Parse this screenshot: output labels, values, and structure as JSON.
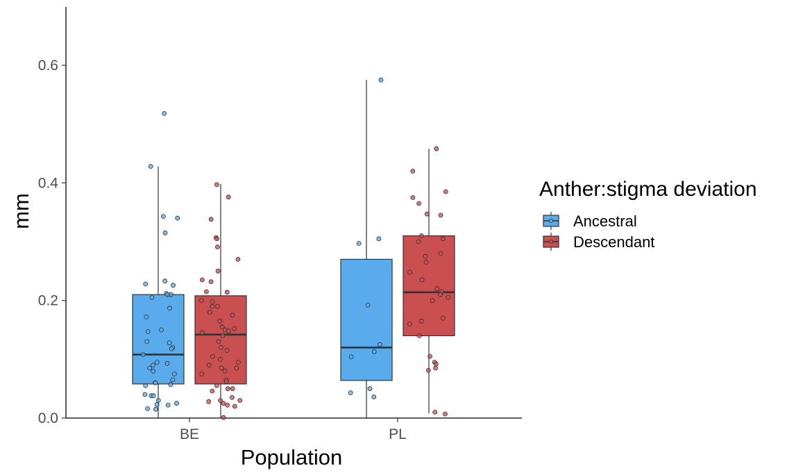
{
  "chart_data": {
    "type": "boxplot",
    "xlabel": "Population",
    "ylabel": "mm",
    "ylim": [
      0,
      0.7
    ],
    "yticks": [
      0.0,
      0.2,
      0.4,
      0.6
    ],
    "ytick_labels": [
      "0.0",
      "0.2",
      "0.4",
      "0.6"
    ],
    "categories": [
      "BE",
      "PL"
    ],
    "legend": {
      "title": "Anther:stigma deviation",
      "position": "right"
    },
    "series": [
      {
        "name": "Ancestral",
        "color": "#5aabeb",
        "boxes": [
          {
            "category": "BE",
            "q1": 0.058,
            "median": 0.108,
            "q3": 0.21,
            "whisker_low": 0.0,
            "whisker_high": 0.428
          },
          {
            "category": "PL",
            "q1": 0.064,
            "median": 0.12,
            "q3": 0.27,
            "whisker_low": 0.0,
            "whisker_high": 0.575
          }
        ],
        "points": {
          "BE": [
            0.518,
            0.428,
            0.343,
            0.34,
            0.315,
            0.233,
            0.228,
            0.226,
            0.212,
            0.21,
            0.21,
            0.205,
            0.187,
            0.172,
            0.15,
            0.147,
            0.13,
            0.128,
            0.12,
            0.118,
            0.108,
            0.095,
            0.093,
            0.09,
            0.085,
            0.08,
            0.075,
            0.065,
            0.06,
            0.06,
            0.057,
            0.055,
            0.04,
            0.038,
            0.038,
            0.03,
            0.025,
            0.023,
            0.022,
            0.016,
            0.015
          ],
          "PL": [
            0.575,
            0.305,
            0.297,
            0.192,
            0.125,
            0.113,
            0.104,
            0.05,
            0.043,
            0.036
          ]
        }
      },
      {
        "name": "Descendant",
        "color": "#c94f50",
        "boxes": [
          {
            "category": "BE",
            "q1": 0.058,
            "median": 0.142,
            "q3": 0.208,
            "whisker_low": 0.0,
            "whisker_high": 0.398
          },
          {
            "category": "PL",
            "q1": 0.14,
            "median": 0.214,
            "q3": 0.31,
            "whisker_low": 0.008,
            "whisker_high": 0.458
          }
        ],
        "points": {
          "BE": [
            0.397,
            0.376,
            0.338,
            0.307,
            0.305,
            0.291,
            0.27,
            0.25,
            0.235,
            0.232,
            0.215,
            0.214,
            0.2,
            0.198,
            0.19,
            0.19,
            0.18,
            0.175,
            0.165,
            0.155,
            0.152,
            0.15,
            0.148,
            0.145,
            0.14,
            0.13,
            0.12,
            0.115,
            0.105,
            0.1,
            0.095,
            0.09,
            0.085,
            0.085,
            0.08,
            0.075,
            0.065,
            0.062,
            0.055,
            0.05,
            0.05,
            0.046,
            0.035,
            0.03,
            0.03,
            0.028,
            0.025,
            0.022,
            0.02,
            0.001
          ],
          "PL": [
            0.458,
            0.42,
            0.385,
            0.375,
            0.365,
            0.347,
            0.345,
            0.31,
            0.305,
            0.3,
            0.28,
            0.275,
            0.265,
            0.248,
            0.235,
            0.22,
            0.215,
            0.21,
            0.205,
            0.2,
            0.17,
            0.165,
            0.16,
            0.14,
            0.105,
            0.095,
            0.092,
            0.085,
            0.081,
            0.01,
            0.007
          ]
        }
      }
    ]
  }
}
